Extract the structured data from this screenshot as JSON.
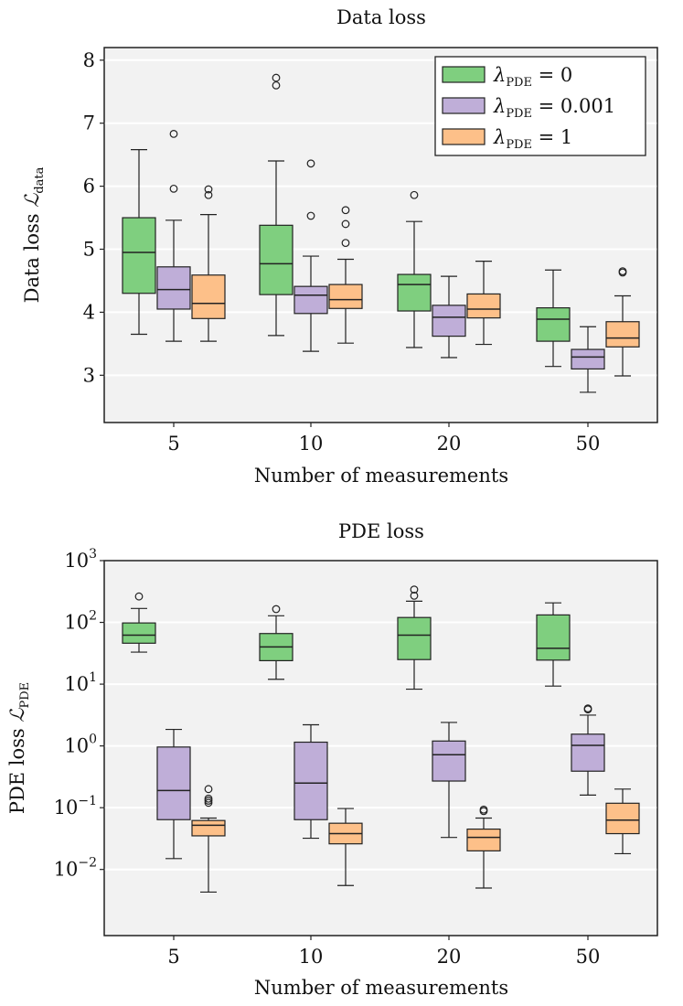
{
  "colors": {
    "panel_bg": "#f2f2f2",
    "grid": "#ffffff",
    "lambda_0": "#7fcf7f",
    "lambda_0001": "#bfaed8",
    "lambda_1": "#fdc089"
  },
  "legend": {
    "placement": "top-right",
    "entries": [
      {
        "prefix": "λ",
        "sub": "PDE",
        "value": " = 0"
      },
      {
        "prefix": "λ",
        "sub": "PDE",
        "value": " = 0.001"
      },
      {
        "prefix": "λ",
        "sub": "PDE",
        "value": " = 1"
      }
    ]
  },
  "chart_data": [
    {
      "type": "boxplot",
      "title": "Data loss",
      "xlabel": "Number of measurements",
      "ylabel": "Data loss ℒdata",
      "ylabel_main": "Data loss ",
      "ylabel_sym": "ℒ",
      "ylabel_sub": "data",
      "categories": [
        "5",
        "10",
        "20",
        "50"
      ],
      "yscale": "linear",
      "ylim": [
        2.25,
        8.2
      ],
      "yticks": [
        3,
        4,
        5,
        6,
        7,
        8
      ],
      "ytick_labels": [
        "3",
        "4",
        "5",
        "6",
        "7",
        "8"
      ],
      "grid": true,
      "series": [
        {
          "name": "λPDE = 0",
          "color": "#7fcf7f",
          "boxes": [
            {
              "whislo": 3.65,
              "q1": 4.3,
              "med": 4.95,
              "q3": 5.5,
              "whishi": 6.58,
              "fliers": []
            },
            {
              "whislo": 3.63,
              "q1": 4.28,
              "med": 4.77,
              "q3": 5.38,
              "whishi": 6.4,
              "fliers": [
                7.6,
                7.72
              ]
            },
            {
              "whislo": 3.44,
              "q1": 4.02,
              "med": 4.44,
              "q3": 4.6,
              "whishi": 5.44,
              "fliers": [
                5.86
              ]
            },
            {
              "whislo": 3.14,
              "q1": 3.54,
              "med": 3.89,
              "q3": 4.07,
              "whishi": 4.67,
              "fliers": []
            }
          ]
        },
        {
          "name": "λPDE = 0.001",
          "color": "#bfaed8",
          "boxes": [
            {
              "whislo": 3.54,
              "q1": 4.05,
              "med": 4.36,
              "q3": 4.72,
              "whishi": 5.46,
              "fliers": [
                5.96,
                6.83
              ]
            },
            {
              "whislo": 3.38,
              "q1": 3.98,
              "med": 4.27,
              "q3": 4.41,
              "whishi": 4.89,
              "fliers": [
                5.53,
                6.36
              ]
            },
            {
              "whislo": 3.28,
              "q1": 3.62,
              "med": 3.92,
              "q3": 4.11,
              "whishi": 4.57,
              "fliers": []
            },
            {
              "whislo": 2.73,
              "q1": 3.1,
              "med": 3.29,
              "q3": 3.41,
              "whishi": 3.77,
              "fliers": []
            }
          ]
        },
        {
          "name": "λPDE = 1",
          "color": "#fdc089",
          "boxes": [
            {
              "whislo": 3.54,
              "q1": 3.9,
              "med": 4.14,
              "q3": 4.59,
              "whishi": 5.55,
              "fliers": [
                5.86,
                5.95
              ]
            },
            {
              "whislo": 3.51,
              "q1": 4.06,
              "med": 4.2,
              "q3": 4.44,
              "whishi": 4.84,
              "fliers": [
                5.1,
                5.4,
                5.62
              ]
            },
            {
              "whislo": 3.49,
              "q1": 3.91,
              "med": 4.05,
              "q3": 4.29,
              "whishi": 4.81,
              "fliers": []
            },
            {
              "whislo": 2.99,
              "q1": 3.45,
              "med": 3.59,
              "q3": 3.85,
              "whishi": 4.26,
              "fliers": [
                4.63,
                4.65
              ]
            }
          ]
        }
      ]
    },
    {
      "type": "boxplot",
      "title": "PDE loss",
      "xlabel": "Number of measurements",
      "ylabel": "PDE loss ℒPDE",
      "ylabel_main": "PDE loss ",
      "ylabel_sym": "ℒ",
      "ylabel_sub": "PDE",
      "categories": [
        "5",
        "10",
        "20",
        "50"
      ],
      "yscale": "log",
      "ylim": [
        0.00085,
        1000
      ],
      "yticks": [
        0.01,
        0.1,
        1,
        10,
        100,
        1000
      ],
      "ytick_labels": [
        {
          "base": "10",
          "exp": "−2"
        },
        {
          "base": "10",
          "exp": "−1"
        },
        {
          "base": "10",
          "exp": "0"
        },
        {
          "base": "10",
          "exp": "1"
        },
        {
          "base": "10",
          "exp": "2"
        },
        {
          "base": "10",
          "exp": "3"
        }
      ],
      "grid": true,
      "series": [
        {
          "name": "λPDE = 0",
          "color": "#7fcf7f",
          "boxes": [
            {
              "whislo": 33,
              "q1": 46,
              "med": 62,
              "q3": 98,
              "whishi": 168,
              "fliers": [
                263
              ]
            },
            {
              "whislo": 12,
              "q1": 24,
              "med": 40,
              "q3": 66,
              "whishi": 128,
              "fliers": [
                164
              ]
            },
            {
              "whislo": 8.3,
              "q1": 25,
              "med": 62,
              "q3": 120,
              "whishi": 220,
              "fliers": [
                270,
                340
              ]
            },
            {
              "whislo": 9.3,
              "q1": 24.5,
              "med": 38,
              "q3": 132,
              "whishi": 207,
              "fliers": []
            }
          ]
        },
        {
          "name": "λPDE = 0.001",
          "color": "#bfaed8",
          "boxes": [
            {
              "whislo": 0.015,
              "q1": 0.064,
              "med": 0.19,
              "q3": 0.96,
              "whishi": 1.85,
              "fliers": []
            },
            {
              "whislo": 0.032,
              "q1": 0.064,
              "med": 0.25,
              "q3": 1.15,
              "whishi": 2.2,
              "fliers": []
            },
            {
              "whislo": 0.033,
              "q1": 0.27,
              "med": 0.72,
              "q3": 1.2,
              "whishi": 2.4,
              "fliers": []
            },
            {
              "whislo": 0.16,
              "q1": 0.39,
              "med": 1.02,
              "q3": 1.55,
              "whishi": 3.15,
              "fliers": [
                3.9,
                4.05
              ]
            }
          ]
        },
        {
          "name": "λPDE = 1",
          "color": "#fdc089",
          "boxes": [
            {
              "whislo": 0.0043,
              "q1": 0.035,
              "med": 0.052,
              "q3": 0.062,
              "whishi": 0.068,
              "fliers": [
                0.12,
                0.13,
                0.14,
                0.2
              ]
            },
            {
              "whislo": 0.0055,
              "q1": 0.026,
              "med": 0.038,
              "q3": 0.056,
              "whishi": 0.097,
              "fliers": []
            },
            {
              "whislo": 0.005,
              "q1": 0.02,
              "med": 0.033,
              "q3": 0.045,
              "whishi": 0.068,
              "fliers": [
                0.088,
                0.093
              ]
            },
            {
              "whislo": 0.018,
              "q1": 0.038,
              "med": 0.063,
              "q3": 0.118,
              "whishi": 0.2,
              "fliers": []
            }
          ]
        }
      ]
    }
  ]
}
